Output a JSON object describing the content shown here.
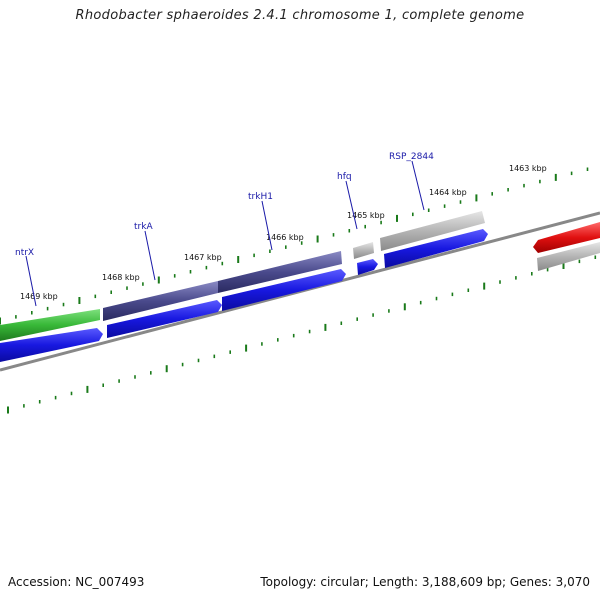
{
  "title": "Rhodobacter sphaeroides 2.4.1 chromosome 1, complete genome",
  "footer": {
    "accession": "Accession: NC_007493",
    "summary": "Topology: circular; Length: 3,188,609 bp; Genes: 3,070"
  },
  "ruler_labels": [
    "1469 kbp",
    "1468 kbp",
    "1467 kbp",
    "1466 kbp",
    "1465 kbp",
    "1464 kbp",
    "1463 kbp"
  ],
  "gene_labels": [
    "ntrX",
    "trkA",
    "trkH1",
    "hfq",
    "RSP_2844"
  ],
  "colors": {
    "green_feature": "#38b838",
    "purple_feature": "#4a4a8c",
    "blue_cds": "#1818e0",
    "gray_feature": "#a8a8a8",
    "red_cds": "#e01010",
    "backbone": "#888888",
    "ticks": "#1a7a1a",
    "label_link": "#1a1aa8"
  }
}
